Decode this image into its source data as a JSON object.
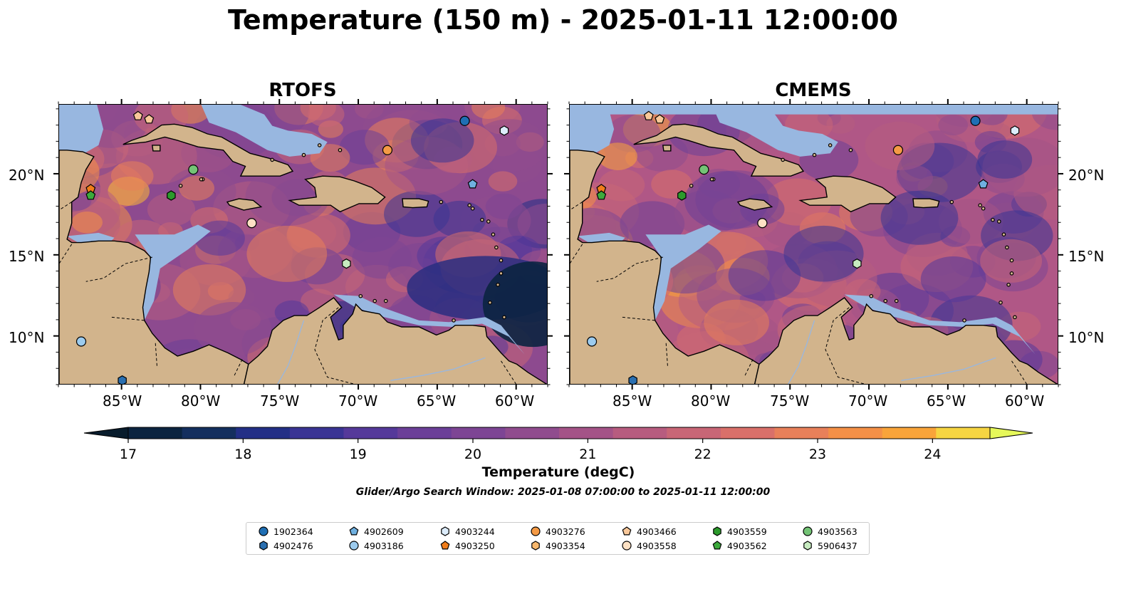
{
  "title": "Temperature (150 m) - 2025-01-11 12:00:00",
  "panels": [
    {
      "name": "RTOFS"
    },
    {
      "name": "CMEMS"
    }
  ],
  "lon_ticks": [
    "85°W",
    "80°W",
    "75°W",
    "70°W",
    "65°W",
    "60°W"
  ],
  "lat_ticks": [
    "20°N",
    "15°N",
    "10°N"
  ],
  "colorbar": {
    "label": "Temperature (degC)",
    "ticks": [
      "17",
      "18",
      "19",
      "20",
      "21",
      "22",
      "23",
      "24"
    ],
    "colors": [
      "#0b2440",
      "#142f5e",
      "#232f86",
      "#3a3494",
      "#55399a",
      "#6b3f98",
      "#7d4594",
      "#904c8e",
      "#a45387",
      "#b75c7f",
      "#c86676",
      "#d9706a",
      "#e8805a",
      "#f49047",
      "#f9a43a",
      "#fbba37",
      "#f6d542"
    ],
    "over_color": "#e6f85a",
    "under_color": "#081c2c"
  },
  "search_window": "Glider/Argo Search Window: 2025-01-08 07:00:00 to 2025-01-11 12:00:00",
  "legend": [
    {
      "id": "1902364",
      "marker": "circle",
      "color": "#1f6fb4"
    },
    {
      "id": "4902476",
      "marker": "hexagon",
      "color": "#2a6fb0"
    },
    {
      "id": "4902609",
      "marker": "pentagon",
      "color": "#6fb0e0"
    },
    {
      "id": "4903186",
      "marker": "circle",
      "color": "#9ccbee"
    },
    {
      "id": "4903244",
      "marker": "hexagon",
      "color": "#dcecfb"
    },
    {
      "id": "4903250",
      "marker": "pentagon",
      "color": "#f07d1a"
    },
    {
      "id": "4903276",
      "marker": "circle",
      "color": "#f59a45"
    },
    {
      "id": "4903354",
      "marker": "hexagon",
      "color": "#f8b86d"
    },
    {
      "id": "4903466",
      "marker": "pentagon",
      "color": "#f9c89a"
    },
    {
      "id": "4903558",
      "marker": "circle",
      "color": "#fde1c4"
    },
    {
      "id": "4903559",
      "marker": "hexagon",
      "color": "#2c9a2c"
    },
    {
      "id": "4903562",
      "marker": "pentagon",
      "color": "#3caa3c"
    },
    {
      "id": "4903563",
      "marker": "circle",
      "color": "#74c476"
    },
    {
      "id": "5906437",
      "marker": "hexagon",
      "color": "#c7ebc0"
    }
  ],
  "map_data": {
    "extent": {
      "lon_min": -89,
      "lon_max": -58,
      "lat_min": 7,
      "lat_max": 24.3
    },
    "colors": {
      "land": "#d2b48c",
      "shallow_water": "#98b7e0",
      "deep_low": "#0a2236"
    },
    "floats": [
      {
        "id": "4903466",
        "lon": -84.0,
        "lat": 23.6
      },
      {
        "id": "4903466",
        "lon": -83.3,
        "lat": 23.4
      },
      {
        "id": "1902364",
        "lon": -63.3,
        "lat": 23.3
      },
      {
        "id": "4903244",
        "lon": -60.8,
        "lat": 22.7
      },
      {
        "id": "4903276",
        "lon": -68.2,
        "lat": 21.5
      },
      {
        "id": "4903563",
        "lon": -80.5,
        "lat": 20.3
      },
      {
        "id": "4902609",
        "lon": -62.8,
        "lat": 19.4
      },
      {
        "id": "4903250",
        "lon": -87.0,
        "lat": 19.1
      },
      {
        "id": "4903562",
        "lon": -87.0,
        "lat": 18.7
      },
      {
        "id": "4903559",
        "lon": -81.9,
        "lat": 18.7
      },
      {
        "id": "4903558",
        "lon": -76.8,
        "lat": 17.0
      },
      {
        "id": "5906437",
        "lon": -70.8,
        "lat": 14.5
      },
      {
        "id": "4903186",
        "lon": -87.6,
        "lat": 9.7
      },
      {
        "id": "4902476",
        "lon": -85.0,
        "lat": 7.3
      }
    ]
  }
}
